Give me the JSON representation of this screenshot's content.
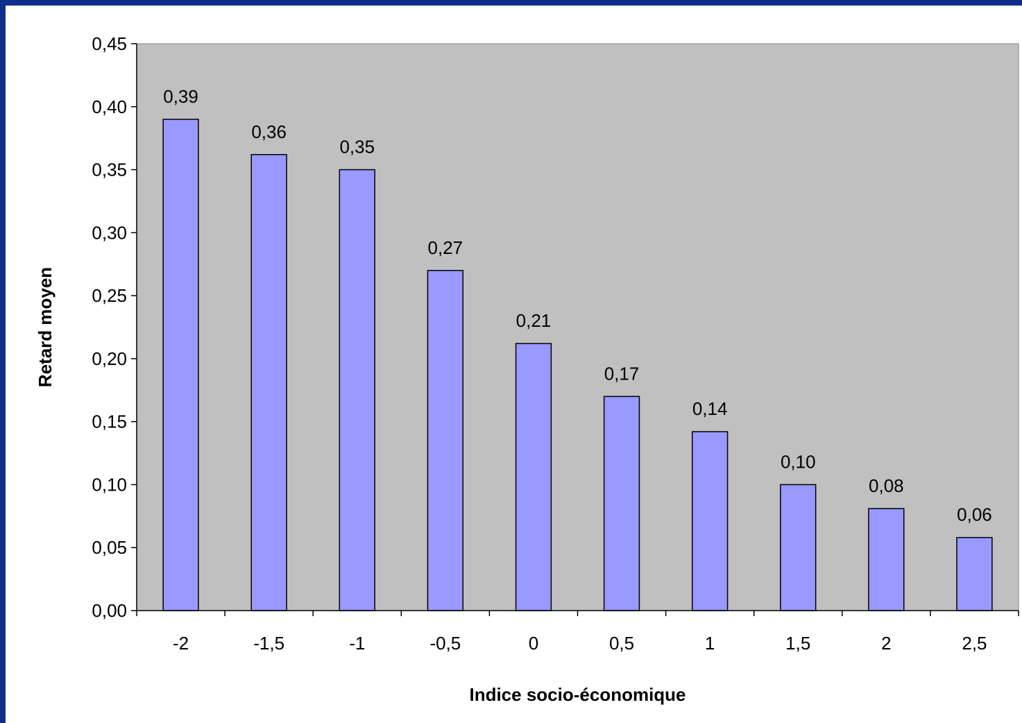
{
  "chart_data": {
    "type": "bar",
    "categories": [
      "-2",
      "-1,5",
      "-1",
      "-0,5",
      "0",
      "0,5",
      "1",
      "1,5",
      "2",
      "2,5"
    ],
    "values": [
      0.39,
      0.362,
      0.35,
      0.27,
      0.212,
      0.17,
      0.142,
      0.1,
      0.081,
      0.058
    ],
    "value_labels": [
      "0,39",
      "0,36",
      "0,35",
      "0,27",
      "0,21",
      "0,17",
      "0,14",
      "0,10",
      "0,08",
      "0,06"
    ],
    "y_ticks": [
      0,
      0.05,
      0.1,
      0.15,
      0.2,
      0.25,
      0.3,
      0.35,
      0.4,
      0.45
    ],
    "y_tick_labels": [
      "0,00",
      "0,05",
      "0,10",
      "0,15",
      "0,20",
      "0,25",
      "0,30",
      "0,35",
      "0,40",
      "0,45"
    ],
    "ylim": [
      0,
      0.45
    ],
    "xlabel": "Indice socio-économique",
    "ylabel": "Retard moyen",
    "grid": false,
    "colors": {
      "border": "#0F2E8C",
      "plot_background": "#C0C0C0",
      "bar_fill": "#9999FF",
      "bar_stroke": "#000000"
    }
  }
}
